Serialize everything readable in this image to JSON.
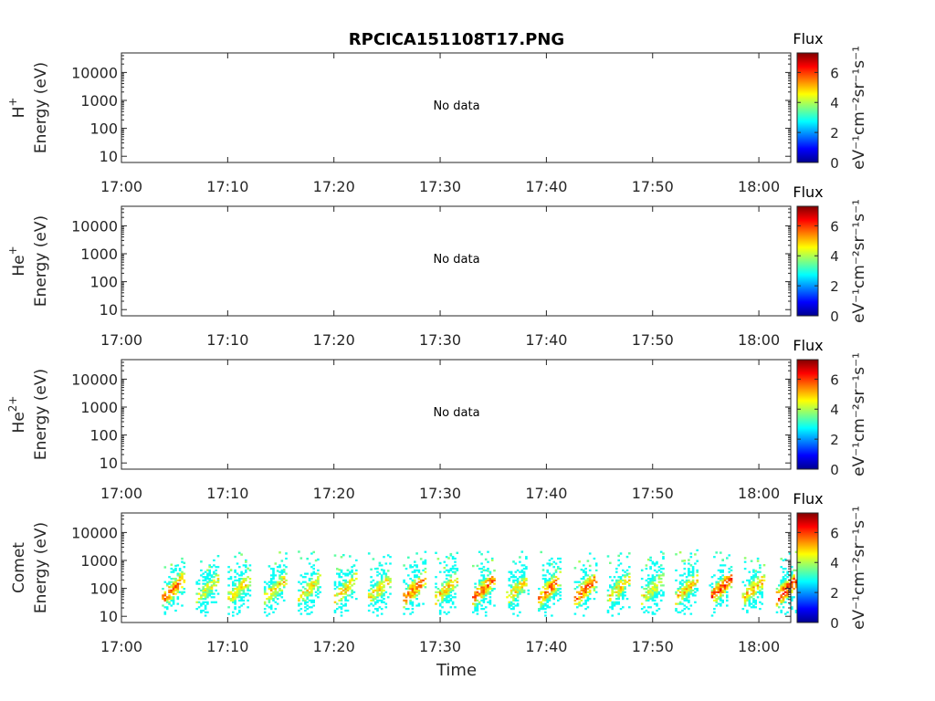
{
  "chart_data": {
    "type": "heatmap",
    "title": "RPCICA151108T17.PNG",
    "xlabel": "Time",
    "x_ticks": [
      "17:00",
      "17:10",
      "17:20",
      "17:30",
      "17:40",
      "17:50",
      "18:00"
    ],
    "xlim_minutes": [
      0,
      63
    ],
    "y_scale": "log",
    "y_ticks": [
      "10",
      "100",
      "1000",
      "10000"
    ],
    "ylim": [
      6,
      50000
    ],
    "colorbar": {
      "title": "Flux",
      "unit": "eV⁻¹cm⁻²sr⁻¹s⁻¹",
      "ticks": [
        "0",
        "2",
        "4",
        "6"
      ],
      "range": [
        0,
        7.3
      ],
      "colormap": "jet"
    },
    "panels": [
      {
        "species": "H",
        "charge": "+",
        "ylabel": "Energy (eV)",
        "status": "No data"
      },
      {
        "species": "He",
        "charge": "+",
        "ylabel": "Energy (eV)",
        "status": "No data"
      },
      {
        "species": "He",
        "charge": "2+",
        "ylabel": "Energy (eV)",
        "status": "No data"
      },
      {
        "species": "Comet",
        "charge": "",
        "ylabel": "Energy (eV)",
        "status": "",
        "bursts": [
          {
            "t": 4.2,
            "peak": 6.2
          },
          {
            "t": 7.4,
            "peak": 5.0
          },
          {
            "t": 10.4,
            "peak": 5.4
          },
          {
            "t": 13.8,
            "peak": 5.5
          },
          {
            "t": 17.0,
            "peak": 5.2
          },
          {
            "t": 20.4,
            "peak": 5.4
          },
          {
            "t": 23.6,
            "peak": 5.3
          },
          {
            "t": 26.9,
            "peak": 6.2
          },
          {
            "t": 29.9,
            "peak": 5.6
          },
          {
            "t": 33.4,
            "peak": 6.3
          },
          {
            "t": 36.6,
            "peak": 5.3
          },
          {
            "t": 39.6,
            "peak": 6.2
          },
          {
            "t": 43.0,
            "peak": 6.4
          },
          {
            "t": 46.1,
            "peak": 5.4
          },
          {
            "t": 49.3,
            "peak": 5.2
          },
          {
            "t": 52.5,
            "peak": 5.6
          },
          {
            "t": 55.7,
            "peak": 6.5
          },
          {
            "t": 58.8,
            "peak": 5.6
          },
          {
            "t": 62.0,
            "peak": 6.8
          }
        ]
      }
    ]
  }
}
